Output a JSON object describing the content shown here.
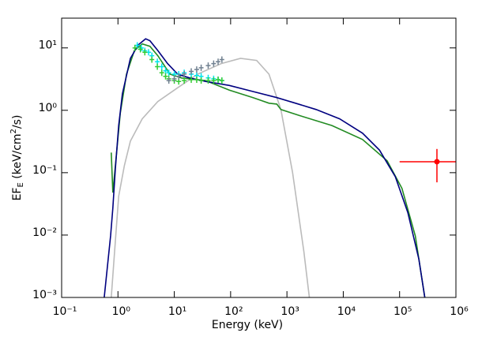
{
  "chart_data": {
    "type": "line",
    "xlabel": "Energy (keV)",
    "ylabel_parts": [
      "EF",
      "E",
      " (keV/cm",
      "2",
      "/s)"
    ],
    "xscale": "log",
    "yscale": "log",
    "xlim": [
      0.1,
      1000000
    ],
    "ylim": [
      0.001,
      30
    ],
    "xticks": [
      {
        "value": 0.1,
        "label": "10⁻¹"
      },
      {
        "value": 1,
        "label": "10⁰"
      },
      {
        "value": 10,
        "label": "10¹"
      },
      {
        "value": 100,
        "label": "10²"
      },
      {
        "value": 1000,
        "label": "10³"
      },
      {
        "value": 10000,
        "label": "10⁴"
      },
      {
        "value": 100000,
        "label": "10⁵"
      },
      {
        "value": 1000000,
        "label": "10⁶"
      }
    ],
    "yticks": [
      {
        "value": 0.001,
        "label": "10⁻³"
      },
      {
        "value": 0.01,
        "label": "10⁻²"
      },
      {
        "value": 0.1,
        "label": "10⁻¹"
      },
      {
        "value": 1,
        "label": "10⁰"
      },
      {
        "value": 10,
        "label": "10¹"
      }
    ],
    "series": [
      {
        "style": "line",
        "color": "#bbbbbb",
        "x": [
          0.76,
          0.87,
          1.03,
          1.3,
          1.66,
          2.7,
          5.1,
          11.5,
          26,
          68,
          150,
          290,
          480,
          780,
          1260,
          2000,
          2500
        ],
        "values": [
          0.001,
          0.0054,
          0.042,
          0.13,
          0.32,
          0.73,
          1.38,
          2.3,
          3.8,
          5.6,
          6.8,
          6.3,
          3.8,
          1.03,
          0.1,
          0.0054,
          0.001
        ]
      },
      {
        "style": "line",
        "color": "#228b22",
        "x": [
          0.76,
          0.81,
          0.9,
          1.1,
          1.42,
          1.96,
          2.7,
          3.7,
          5.1,
          8.4,
          13.4,
          36,
          95,
          250,
          480,
          660,
          780,
          1700,
          6300,
          22000,
          60000,
          110000,
          190000,
          280000
        ],
        "values": [
          0.21,
          0.048,
          0.13,
          0.89,
          3.8,
          9.1,
          11.6,
          10.6,
          7.5,
          3.8,
          3.3,
          3.0,
          2.1,
          1.6,
          1.3,
          1.26,
          1.03,
          0.82,
          0.57,
          0.34,
          0.155,
          0.056,
          0.0097,
          0.001
        ]
      },
      {
        "style": "line",
        "color": "#000080",
        "x": [
          0.57,
          0.74,
          0.81,
          0.9,
          1.03,
          1.2,
          1.66,
          2.3,
          3.1,
          3.7,
          5.1,
          7.6,
          11.5,
          18.8,
          36,
          95,
          250,
          660,
          1260,
          3300,
          8600,
          22000,
          44000,
          84000,
          140000,
          220000,
          280000
        ],
        "values": [
          0.001,
          0.0098,
          0.027,
          0.116,
          0.57,
          1.84,
          6.8,
          11.2,
          14,
          13,
          9.1,
          5.6,
          3.8,
          3.3,
          2.9,
          2.5,
          2.0,
          1.6,
          1.34,
          1.03,
          0.73,
          0.43,
          0.23,
          0.086,
          0.023,
          0.0041,
          0.001
        ]
      },
      {
        "style": "points",
        "color": "#00e5ee",
        "x": [
          2.2,
          2.6,
          3,
          3.5,
          4,
          5,
          6,
          7,
          8,
          10,
          12,
          15,
          20,
          25,
          30,
          40,
          50,
          60,
          70
        ],
        "values": [
          11,
          10,
          9,
          8.5,
          7.5,
          6,
          5,
          4.3,
          4,
          3.8,
          3.8,
          4,
          3.8,
          3.6,
          3.5,
          3.3,
          3.2,
          3.1,
          3
        ]
      },
      {
        "style": "points",
        "color": "#33cc33",
        "x": [
          2,
          2.5,
          3,
          4,
          5,
          6,
          7,
          8,
          10,
          12,
          15,
          20,
          25,
          30,
          40,
          50,
          60,
          70
        ],
        "values": [
          10,
          9.5,
          8.5,
          6.5,
          5,
          4,
          3.5,
          3.2,
          3,
          2.9,
          3,
          3.1,
          3.1,
          3,
          3,
          3,
          3.1,
          3
        ]
      },
      {
        "style": "points",
        "color": "#708090",
        "x": [
          8,
          10,
          12,
          15,
          20,
          25,
          30,
          40,
          50,
          60,
          70
        ],
        "values": [
          3,
          3.2,
          3.5,
          3.8,
          4.2,
          4.5,
          4.8,
          5.2,
          5.6,
          6,
          6.5
        ]
      },
      {
        "style": "errorpoint",
        "color": "#ff0000",
        "x": [
          460000
        ],
        "values": [
          0.15
        ],
        "x_range": [
          [
            100000,
            1000000
          ]
        ],
        "y_range": [
          [
            0.07,
            0.24
          ]
        ]
      }
    ]
  }
}
